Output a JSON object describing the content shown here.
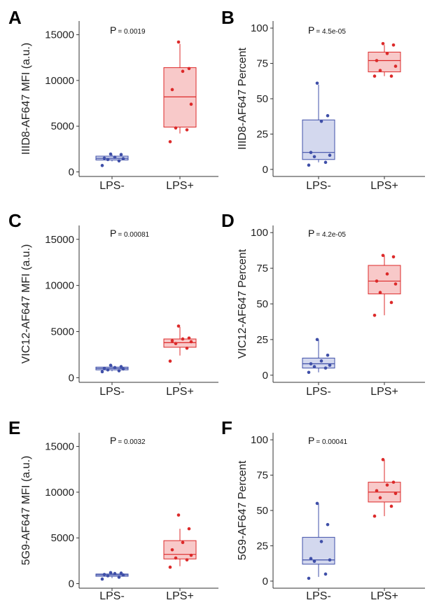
{
  "chart_data": [
    {
      "panel": "A",
      "type": "box",
      "ylabel": "IIID8-AF647 MFI (a.u.)",
      "categories": [
        "LPS-",
        "LPS+"
      ],
      "yticks": [
        0,
        5000,
        10000,
        15000
      ],
      "ylim": [
        -500,
        16500
      ],
      "p_label": "P",
      "p_value": "= 0.0019",
      "series": [
        {
          "name": "LPS-",
          "color": "#3f4fa8",
          "fill": "#d3d8ee",
          "box": {
            "q1": 1300,
            "median": 1480,
            "q3": 1720,
            "min": 1150,
            "max": 1900
          },
          "points": [
            700,
            1200,
            1350,
            1450,
            1500,
            1600,
            1900,
            1950
          ]
        },
        {
          "name": "LPS+",
          "color": "#dc2a2a",
          "fill": "#f8c9c9",
          "box": {
            "q1": 4900,
            "median": 8200,
            "q3": 11400,
            "min": 4200,
            "max": 14000
          },
          "points": [
            3300,
            4600,
            4800,
            7400,
            9000,
            11000,
            11300,
            14200
          ]
        }
      ]
    },
    {
      "panel": "B",
      "type": "box",
      "ylabel": "IIID8-AF647 Percent",
      "categories": [
        "LPS-",
        "LPS+"
      ],
      "yticks": [
        0,
        25,
        50,
        75,
        100
      ],
      "ylim": [
        -5,
        105
      ],
      "p_label": "P",
      "p_value": "= 4.5e-05",
      "series": [
        {
          "name": "LPS-",
          "color": "#3f4fa8",
          "fill": "#d3d8ee",
          "box": {
            "q1": 7,
            "median": 12,
            "q3": 35,
            "min": 5,
            "max": 60
          },
          "points": [
            3,
            5,
            9,
            10,
            12,
            34,
            38,
            61
          ]
        },
        {
          "name": "LPS+",
          "color": "#dc2a2a",
          "fill": "#f8c9c9",
          "box": {
            "q1": 69,
            "median": 77,
            "q3": 83,
            "min": 66,
            "max": 88
          },
          "points": [
            66,
            66,
            70,
            73,
            77,
            82,
            88,
            89
          ]
        }
      ]
    },
    {
      "panel": "C",
      "type": "box",
      "ylabel": "VIC12-AF647 MFI (a.u.)",
      "categories": [
        "LPS-",
        "LPS+"
      ],
      "yticks": [
        0,
        5000,
        10000,
        15000
      ],
      "ylim": [
        -500,
        16500
      ],
      "p_label": "P",
      "p_value": "= 0.00081",
      "series": [
        {
          "name": "LPS-",
          "color": "#3f4fa8",
          "fill": "#d3d8ee",
          "box": {
            "q1": 850,
            "median": 1000,
            "q3": 1150,
            "min": 700,
            "max": 1350
          },
          "points": [
            650,
            750,
            850,
            950,
            1000,
            1100,
            1200,
            1350
          ]
        },
        {
          "name": "LPS+",
          "color": "#dc2a2a",
          "fill": "#f8c9c9",
          "box": {
            "q1": 3300,
            "median": 3800,
            "q3": 4200,
            "min": 2400,
            "max": 5500
          },
          "points": [
            1800,
            3200,
            3700,
            3900,
            4000,
            4200,
            4300,
            5600
          ]
        }
      ]
    },
    {
      "panel": "D",
      "type": "box",
      "ylabel": "VIC12-AF647 Percent",
      "categories": [
        "LPS-",
        "LPS+"
      ],
      "yticks": [
        0,
        25,
        50,
        75,
        100
      ],
      "ylim": [
        -5,
        105
      ],
      "p_label": "P",
      "p_value": "= 4.2e-05",
      "series": [
        {
          "name": "LPS-",
          "color": "#3f4fa8",
          "fill": "#d3d8ee",
          "box": {
            "q1": 5,
            "median": 8,
            "q3": 12,
            "min": 2,
            "max": 25
          },
          "points": [
            2,
            5,
            6,
            7,
            8,
            10,
            14,
            25
          ]
        },
        {
          "name": "LPS+",
          "color": "#dc2a2a",
          "fill": "#f8c9c9",
          "box": {
            "q1": 57,
            "median": 66,
            "q3": 77,
            "min": 42,
            "max": 84
          },
          "points": [
            42,
            51,
            58,
            64,
            66,
            71,
            83,
            84
          ]
        }
      ]
    },
    {
      "panel": "E",
      "type": "box",
      "ylabel": "5G9-AF647 MFI (a.u.)",
      "categories": [
        "LPS-",
        "LPS+"
      ],
      "yticks": [
        0,
        5000,
        10000,
        15000
      ],
      "ylim": [
        -500,
        16500
      ],
      "p_label": "P",
      "p_value": "= 0.0032",
      "series": [
        {
          "name": "LPS-",
          "color": "#3f4fa8",
          "fill": "#d3d8ee",
          "box": {
            "q1": 800,
            "median": 950,
            "q3": 1050,
            "min": 600,
            "max": 1200
          },
          "points": [
            500,
            700,
            850,
            950,
            1000,
            1100,
            1150,
            1200
          ]
        },
        {
          "name": "LPS+",
          "color": "#dc2a2a",
          "fill": "#f8c9c9",
          "box": {
            "q1": 2700,
            "median": 3200,
            "q3": 4700,
            "min": 1900,
            "max": 6000
          },
          "points": [
            1800,
            2600,
            2800,
            3100,
            3700,
            4500,
            6000,
            7500
          ]
        }
      ]
    },
    {
      "panel": "F",
      "type": "box",
      "ylabel": "5G9-AF647 Percent",
      "categories": [
        "LPS-",
        "LPS+"
      ],
      "yticks": [
        0,
        25,
        50,
        75,
        100
      ],
      "ylim": [
        -5,
        105
      ],
      "p_label": "P",
      "p_value": "= 0.00041",
      "series": [
        {
          "name": "LPS-",
          "color": "#3f4fa8",
          "fill": "#d3d8ee",
          "box": {
            "q1": 12,
            "median": 15,
            "q3": 31,
            "min": 3,
            "max": 55
          },
          "points": [
            2,
            5,
            14,
            15,
            16,
            28,
            40,
            55
          ]
        },
        {
          "name": "LPS+",
          "color": "#dc2a2a",
          "fill": "#f8c9c9",
          "box": {
            "q1": 56,
            "median": 63,
            "q3": 70,
            "min": 46,
            "max": 86
          },
          "points": [
            46,
            53,
            59,
            62,
            64,
            68,
            70,
            86
          ]
        }
      ]
    }
  ]
}
